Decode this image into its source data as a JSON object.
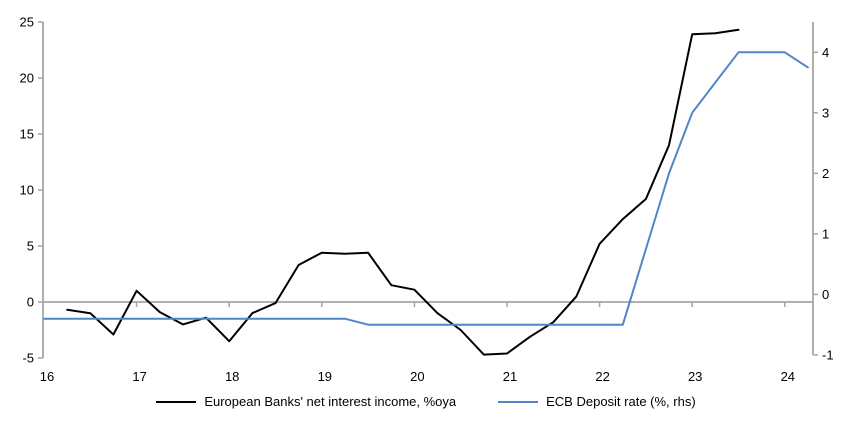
{
  "chart_data": {
    "type": "line",
    "title": "",
    "xlabel": "",
    "ylabel_left": "",
    "ylabel_right": "",
    "grid": "zero-line-only",
    "legend_position": "bottom-center",
    "x_axis": {
      "ticks": [
        16,
        17,
        18,
        19,
        20,
        21,
        22,
        23,
        24
      ],
      "range": [
        16,
        24.3
      ]
    },
    "left_axis": {
      "ticks": [
        25,
        20,
        15,
        10,
        5,
        0,
        -5
      ],
      "range": [
        -5,
        25
      ]
    },
    "right_axis": {
      "ticks": [
        4,
        3,
        2,
        1,
        0,
        -1
      ],
      "range": [
        -1,
        4.5
      ]
    },
    "series": [
      {
        "name": "European Banks' net interest income, %oya",
        "color": "#000000",
        "axis": "left",
        "x": [
          16.25,
          16.5,
          16.75,
          17.0,
          17.25,
          17.5,
          17.75,
          18.0,
          18.25,
          18.5,
          18.75,
          19.0,
          19.25,
          19.5,
          19.75,
          20.0,
          20.25,
          20.5,
          20.75,
          21.0,
          21.25,
          21.5,
          21.75,
          22.0,
          22.25,
          22.5,
          22.75,
          23.0,
          23.25,
          23.5
        ],
        "y": [
          -0.7,
          -1.0,
          -2.9,
          1.0,
          -0.9,
          -2.0,
          -1.4,
          -3.5,
          -1.0,
          -0.1,
          3.3,
          4.4,
          4.3,
          4.4,
          1.5,
          1.1,
          -1.0,
          -2.5,
          -4.7,
          -4.6,
          -3.1,
          -1.8,
          0.5,
          5.2,
          7.4,
          9.2,
          14.0,
          23.9,
          24.0,
          24.3
        ]
      },
      {
        "name": "ECB Deposit rate (%, rhs)",
        "color": "#4f86c6",
        "axis": "right",
        "x": [
          16.0,
          16.25,
          16.5,
          16.75,
          17.0,
          17.25,
          17.5,
          17.75,
          18.0,
          18.25,
          18.5,
          18.75,
          19.0,
          19.25,
          19.5,
          19.75,
          20.0,
          20.25,
          20.5,
          20.75,
          21.0,
          21.25,
          21.5,
          21.75,
          22.0,
          22.25,
          22.5,
          22.75,
          23.0,
          23.25,
          23.5,
          23.75,
          24.0,
          24.25
        ],
        "y": [
          -0.4,
          -0.4,
          -0.4,
          -0.4,
          -0.4,
          -0.4,
          -0.4,
          -0.4,
          -0.4,
          -0.4,
          -0.4,
          -0.4,
          -0.4,
          -0.4,
          -0.5,
          -0.5,
          -0.5,
          -0.5,
          -0.5,
          -0.5,
          -0.5,
          -0.5,
          -0.5,
          -0.5,
          -0.5,
          -0.5,
          0.75,
          2.0,
          3.0,
          3.5,
          4.0,
          4.0,
          4.0,
          3.75
        ]
      }
    ],
    "colors": {
      "axis_gray": "#a6a6a6",
      "zero_line": "#a6a6a6",
      "text": "#000000",
      "background": "#ffffff"
    }
  }
}
